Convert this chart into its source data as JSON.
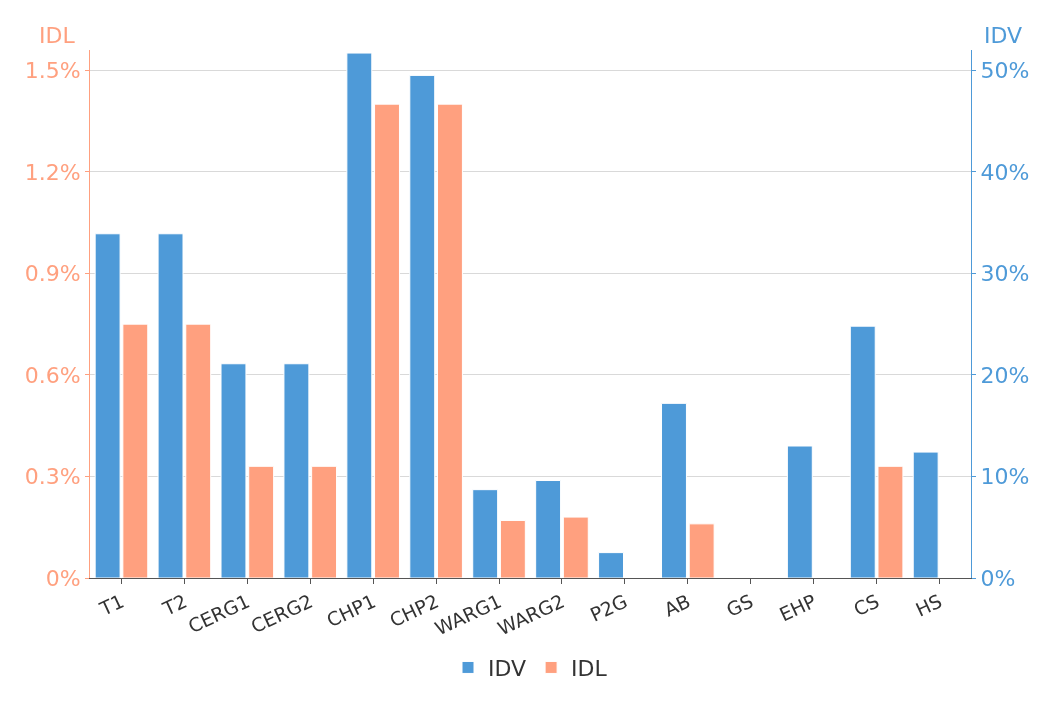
{
  "chart_data": {
    "type": "bar",
    "ylabel": "IDL",
    "y2label": "IDV",
    "categories": [
      "T1",
      "T2",
      "CERG1",
      "CERG2",
      "CHP1",
      "CHP2",
      "WARG1",
      "WARG2",
      "P2G",
      "AB",
      "GS",
      "EHP",
      "CS",
      "HS"
    ],
    "series": [
      {
        "name": "IDV",
        "color": "#4e9ad8",
        "axis": "y2",
        "values": [
          33.9,
          33.9,
          21.1,
          21.1,
          51.7,
          49.5,
          8.7,
          9.6,
          2.5,
          17.2,
          null,
          13.0,
          24.8,
          12.4
        ]
      },
      {
        "name": "IDL",
        "color": "#ffa07f",
        "values": [
          0.75,
          0.75,
          0.33,
          0.33,
          1.4,
          1.4,
          0.17,
          0.18,
          null,
          0.16,
          null,
          null,
          0.33,
          null
        ]
      }
    ],
    "ylim": [
      0,
      1.56
    ],
    "yticks": [
      {
        "value": 0,
        "label": "0%"
      },
      {
        "value": 0.3,
        "label": "0.3%"
      },
      {
        "value": 0.6,
        "label": "0.6%"
      },
      {
        "value": 0.9,
        "label": "0.9%"
      },
      {
        "value": 1.2,
        "label": "1.2%"
      },
      {
        "value": 1.5,
        "label": "1.5%"
      }
    ],
    "y2lim": [
      0,
      52
    ],
    "y2ticks": [
      {
        "value": 0,
        "label": "0%"
      },
      {
        "value": 10,
        "label": "10%"
      },
      {
        "value": 20,
        "label": "20%"
      },
      {
        "value": 30,
        "label": "30%"
      },
      {
        "value": 40,
        "label": "40%"
      },
      {
        "value": 50,
        "label": "50%"
      }
    ],
    "grid": "y",
    "legend": "bottom"
  }
}
